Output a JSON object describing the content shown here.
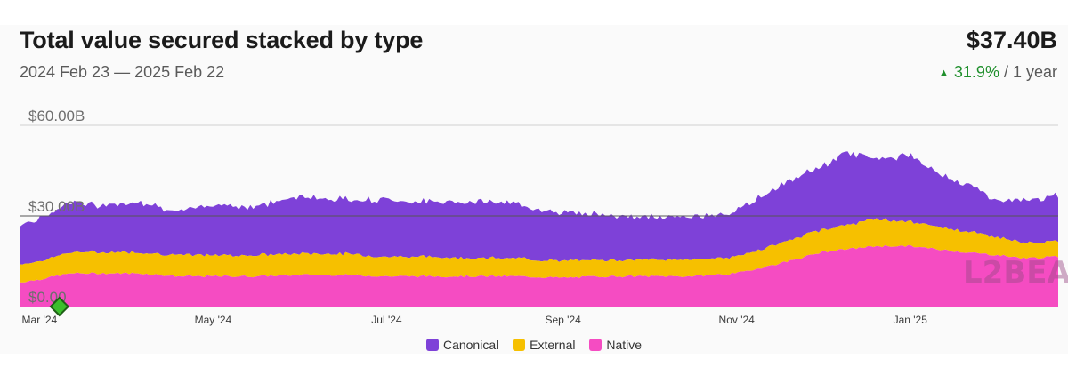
{
  "header": {
    "title": "Total value secured stacked by type",
    "date_range": "2024 Feb 23 — 2025 Feb 22",
    "total_value": "$37.40B",
    "change_pct": "31.9%",
    "change_period": "/ 1 year",
    "change_icon": "triangle-up-icon"
  },
  "legend": [
    {
      "label": "Canonical",
      "color": "#7e41d8"
    },
    {
      "label": "External",
      "color": "#f6c000"
    },
    {
      "label": "Native",
      "color": "#f54cc2"
    }
  ],
  "chart_data": {
    "type": "area",
    "stacked": true,
    "ylim": [
      0,
      60
    ],
    "yticks": [
      "$0.00",
      "$30.00B",
      "$60.00B"
    ],
    "ytick_values": [
      0,
      30,
      60
    ],
    "xticks": [
      {
        "label": "Mar '24",
        "date": "2024-03-01"
      },
      {
        "label": "May '24",
        "date": "2024-05-01"
      },
      {
        "label": "Jul '24",
        "date": "2024-07-01"
      },
      {
        "label": "Sep '24",
        "date": "2024-09-01"
      },
      {
        "label": "Nov '24",
        "date": "2024-11-01"
      },
      {
        "label": "Jan '25",
        "date": "2025-01-01"
      }
    ],
    "x": [
      "2024-02-23",
      "2024-03-01",
      "2024-03-12",
      "2024-03-22",
      "2024-04-05",
      "2024-04-19",
      "2024-05-01",
      "2024-05-15",
      "2024-06-01",
      "2024-06-15",
      "2024-07-01",
      "2024-07-15",
      "2024-08-01",
      "2024-08-15",
      "2024-09-01",
      "2024-09-15",
      "2024-10-01",
      "2024-10-15",
      "2024-11-01",
      "2024-11-15",
      "2024-12-01",
      "2024-12-10",
      "2024-12-20",
      "2025-01-01",
      "2025-01-10",
      "2025-01-20",
      "2025-02-01",
      "2025-02-10",
      "2025-02-22"
    ],
    "series": [
      {
        "name": "Native",
        "color": "#f54cc2",
        "values": [
          8,
          9,
          11,
          11,
          11,
          10,
          10,
          10,
          10.5,
          10.5,
          10,
          10,
          10,
          10,
          9.5,
          10,
          10,
          10,
          11,
          14,
          18,
          19,
          20,
          20,
          19,
          18,
          17,
          16,
          16.5
        ]
      },
      {
        "name": "External",
        "color": "#f6c000",
        "values": [
          6,
          6,
          7,
          7,
          7,
          7,
          7,
          7,
          7,
          7,
          6.5,
          6.5,
          6,
          6,
          5.5,
          5.5,
          5.5,
          5.5,
          5.5,
          6.5,
          7.5,
          8,
          9,
          8,
          7.5,
          7,
          6,
          5,
          5
        ]
      },
      {
        "name": "Canonical",
        "color": "#7e41d8",
        "values": [
          13,
          14,
          17,
          15,
          17,
          14,
          17,
          16,
          19,
          18,
          19,
          18,
          19,
          18,
          16,
          15,
          14,
          14,
          15,
          19,
          21,
          24,
          20,
          22,
          18,
          16,
          12,
          14,
          15
        ]
      }
    ],
    "markers": [
      {
        "date": "2024-03-08",
        "label": "event",
        "color": "#3bbf2c"
      }
    ]
  }
}
